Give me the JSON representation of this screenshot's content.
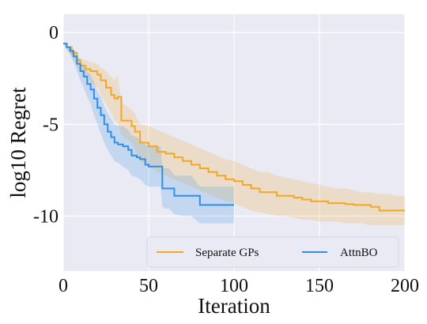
{
  "chart_data": {
    "type": "line",
    "title": "",
    "xlabel": "Iteration",
    "ylabel": "log10 Regret",
    "xlim": [
      0,
      200
    ],
    "ylim": [
      -13,
      1
    ],
    "xticks": [
      0,
      50,
      100,
      150,
      200
    ],
    "yticks": [
      0,
      -5,
      -10
    ],
    "xtick_labels": [
      "0",
      "50",
      "100",
      "150",
      "200"
    ],
    "ytick_labels": [
      "0",
      "-5",
      "-10"
    ],
    "grid": true,
    "legend_position": "bottom-right",
    "series": [
      {
        "name": "Separate GPs",
        "color": "#f5a623",
        "x": [
          0,
          2,
          5,
          8,
          10,
          13,
          16,
          20,
          22,
          25,
          28,
          30,
          32,
          34,
          40,
          42,
          45,
          50,
          55,
          60,
          65,
          70,
          75,
          80,
          85,
          90,
          95,
          100,
          105,
          110,
          115,
          120,
          125,
          130,
          135,
          140,
          145,
          150,
          155,
          160,
          165,
          170,
          175,
          180,
          185,
          190,
          195,
          200
        ],
        "y": [
          -0.6,
          -0.8,
          -1.1,
          -1.5,
          -1.8,
          -2.0,
          -2.1,
          -2.3,
          -2.6,
          -3.0,
          -3.4,
          -3.6,
          -3.5,
          -4.8,
          -5.1,
          -5.4,
          -6.0,
          -6.2,
          -6.5,
          -6.6,
          -6.8,
          -7.0,
          -7.2,
          -7.4,
          -7.6,
          -7.8,
          -8.0,
          -8.1,
          -8.3,
          -8.5,
          -8.7,
          -8.7,
          -8.9,
          -8.9,
          -9.0,
          -9.1,
          -9.2,
          -9.2,
          -9.3,
          -9.3,
          -9.35,
          -9.4,
          -9.4,
          -9.5,
          -9.7,
          -9.7,
          -9.7,
          -9.7
        ],
        "lower": [
          -0.6,
          -0.9,
          -1.3,
          -1.8,
          -2.2,
          -2.5,
          -2.7,
          -3.0,
          -3.4,
          -3.9,
          -4.4,
          -4.8,
          -5.0,
          -5.6,
          -6.0,
          -6.4,
          -7.0,
          -7.3,
          -7.6,
          -7.8,
          -8.0,
          -8.2,
          -8.4,
          -8.6,
          -8.8,
          -9.0,
          -9.2,
          -9.3,
          -9.5,
          -9.7,
          -9.8,
          -9.9,
          -10.0,
          -10.0,
          -10.1,
          -10.2,
          -10.2,
          -10.3,
          -10.3,
          -10.3,
          -10.4,
          -10.4,
          -10.4,
          -10.5,
          -10.5,
          -10.5,
          -10.5,
          -10.5
        ],
        "upper": [
          -0.6,
          -0.7,
          -0.9,
          -1.2,
          -1.4,
          -1.5,
          -1.6,
          -1.7,
          -1.9,
          -2.1,
          -2.4,
          -2.6,
          -2.3,
          -3.8,
          -4.2,
          -4.4,
          -5.0,
          -5.1,
          -5.3,
          -5.5,
          -5.7,
          -5.9,
          -6.1,
          -6.3,
          -6.5,
          -6.7,
          -6.9,
          -7.0,
          -7.2,
          -7.4,
          -7.6,
          -7.6,
          -7.8,
          -7.9,
          -8.0,
          -8.1,
          -8.2,
          -8.3,
          -8.4,
          -8.5,
          -8.5,
          -8.6,
          -8.7,
          -8.7,
          -8.8,
          -8.8,
          -8.9,
          -8.9
        ]
      },
      {
        "name": "AttnBO",
        "color": "#2f8fe8",
        "x": [
          0,
          2,
          4,
          6,
          8,
          10,
          12,
          14,
          16,
          18,
          20,
          22,
          24,
          26,
          28,
          30,
          32,
          35,
          38,
          40,
          43,
          45,
          48,
          50,
          52,
          54,
          56,
          57,
          58,
          60,
          62,
          65,
          70,
          75,
          80,
          82,
          85,
          90,
          95,
          100
        ],
        "y": [
          -0.6,
          -0.8,
          -1.0,
          -1.3,
          -1.7,
          -2.1,
          -2.4,
          -2.8,
          -3.1,
          -3.6,
          -4.1,
          -4.5,
          -5.0,
          -5.4,
          -5.7,
          -6.0,
          -6.1,
          -6.2,
          -6.4,
          -6.7,
          -6.8,
          -6.9,
          -7.2,
          -7.3,
          -7.3,
          -7.3,
          -7.3,
          -7.3,
          -8.5,
          -8.5,
          -8.5,
          -8.9,
          -8.9,
          -8.9,
          -9.4,
          -9.4,
          -9.4,
          -9.4,
          -9.4,
          -9.4
        ],
        "lower": [
          -0.6,
          -0.9,
          -1.2,
          -1.6,
          -2.1,
          -2.6,
          -3.0,
          -3.5,
          -3.9,
          -4.5,
          -5.0,
          -5.5,
          -6.0,
          -6.4,
          -6.7,
          -7.0,
          -7.1,
          -7.3,
          -7.5,
          -7.8,
          -7.9,
          -8.0,
          -8.3,
          -8.4,
          -8.4,
          -8.4,
          -8.4,
          -8.4,
          -9.5,
          -9.6,
          -9.6,
          -9.9,
          -10.0,
          -10.0,
          -10.4,
          -10.4,
          -10.4,
          -10.4,
          -10.4,
          -10.4
        ],
        "upper": [
          -0.6,
          -0.7,
          -0.8,
          -1.0,
          -1.3,
          -1.6,
          -1.8,
          -2.1,
          -2.3,
          -2.7,
          -3.2,
          -3.5,
          -4.0,
          -4.4,
          -4.7,
          -5.0,
          -5.1,
          -5.1,
          -5.3,
          -5.6,
          -5.7,
          -5.8,
          -6.1,
          -6.2,
          -6.2,
          -6.2,
          -6.2,
          -6.2,
          -7.4,
          -7.4,
          -7.4,
          -7.8,
          -7.8,
          -7.8,
          -8.4,
          -8.4,
          -8.4,
          -8.4,
          -8.4,
          -8.4
        ]
      }
    ],
    "colors": {
      "plot_background": "#e9eaf3",
      "gridline": "#ffffff"
    }
  }
}
